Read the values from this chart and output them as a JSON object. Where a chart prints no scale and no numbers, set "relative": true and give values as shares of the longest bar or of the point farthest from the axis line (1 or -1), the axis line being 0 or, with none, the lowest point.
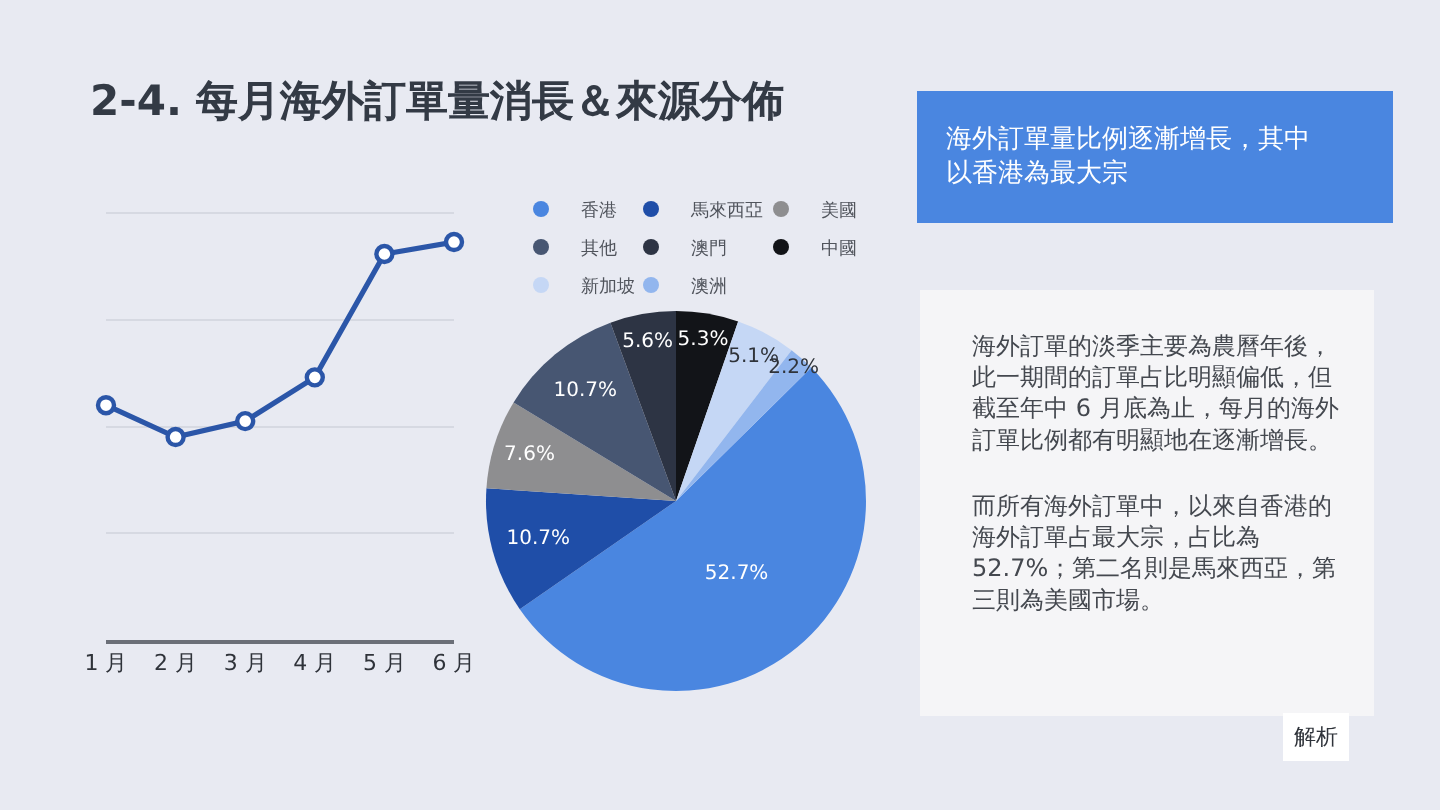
{
  "chart_data": [
    {
      "type": "line",
      "title": "2-4. 每月海外訂單量消長＆來源分佈",
      "categories": [
        "1 月",
        "2 月",
        "3 月",
        "4 月",
        "5 月",
        "6 月"
      ],
      "values": [
        0.59,
        0.51,
        0.55,
        0.66,
        0.97,
        1
      ],
      "relative": true,
      "color": "#2b56a8",
      "marker": "circle",
      "line_style": "solid",
      "grid": "y"
    },
    {
      "type": "pie",
      "categories": [
        "香港",
        "馬來西亞",
        "美國",
        "其他",
        "澳門",
        "中國",
        "新加坡",
        "澳洲"
      ],
      "values": [
        52.7,
        10.7,
        7.6,
        10.7,
        5.6,
        5.3,
        5.1,
        2.2
      ],
      "colors": [
        "#4a86e0",
        "#1f4ea8",
        "#8e8e90",
        "#475672",
        "#2d3444",
        "#121418",
        "#c5d7f5",
        "#92b6ee"
      ],
      "value_labels": [
        "52.7%",
        "10.7%",
        "7.6%",
        "10.7%",
        "5.6%",
        "5.3%",
        "5.1%",
        "2.2%"
      ],
      "legend": "top"
    },
    {
      "type": "other",
      "title": "海外訂單量比例逐漸增長，其中以香港為最大宗",
      "annotations": [
        "海外訂單的淡季主要為農曆年後，此一期間的訂單占比明顯偏低，但截至年中 6 月底為止，每月的海外訂單比例都有明顯地在逐漸增長。",
        "而所有海外訂單中，以來自香港的海外訂單占最大宗，占比為52.7%；第二名則是馬來西亞，第三則為美國市場。",
        "解析"
      ]
    }
  ]
}
